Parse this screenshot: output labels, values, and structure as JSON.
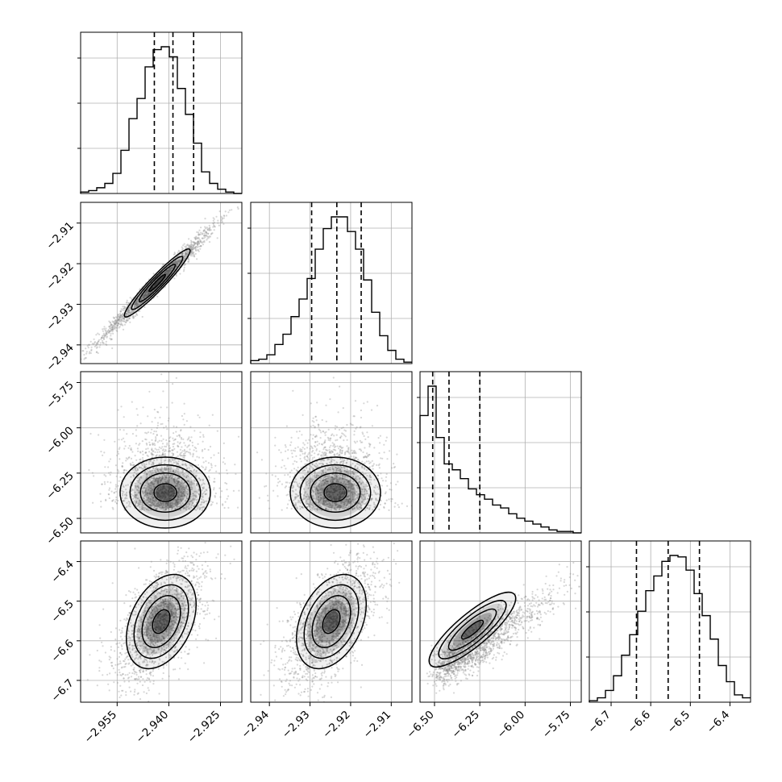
{
  "chart_data": {
    "type": "corner",
    "grid": true,
    "colors": {
      "axis": "#000000",
      "grid": "#b0b0b0",
      "scatter": "#8c8c8c",
      "hist": "#000000",
      "quantile": "#000000"
    },
    "parameters": [
      {
        "index": 0,
        "ticks": [
          -2.955,
          -2.94,
          -2.925
        ],
        "tick_labels": [
          "−2.955",
          "−2.940",
          "−2.925"
        ],
        "xlim": [
          -2.9656,
          -2.9188
        ],
        "quantiles": [
          -2.9442,
          -2.9388,
          -2.9328
        ]
      },
      {
        "index": 1,
        "ticks": [
          -2.94,
          -2.93,
          -2.92,
          -2.91
        ],
        "tick_labels": [
          "−2.94",
          "−2.93",
          "−2.92",
          "−2.91"
        ],
        "xlim": [
          -2.9446,
          -2.9049
        ],
        "quantiles": [
          -2.9296,
          -2.9234,
          -2.9174
        ]
      },
      {
        "index": 2,
        "ticks": [
          -6.5,
          -6.25,
          -6.0,
          -5.75
        ],
        "tick_labels": [
          "−6.50",
          "−6.25",
          "−6.00",
          "−5.75"
        ],
        "xlim": [
          -6.58,
          -5.69
        ],
        "quantiles": [
          -6.51,
          -6.42,
          -6.25
        ]
      },
      {
        "index": 3,
        "ticks": [
          -6.7,
          -6.6,
          -6.5,
          -6.4
        ],
        "tick_labels": [
          "−6.7",
          "−6.6",
          "−6.5",
          "−6.4"
        ],
        "xlim": [
          -6.755,
          -6.348
        ],
        "quantiles": [
          -6.636,
          -6.556,
          -6.477
        ]
      }
    ],
    "histograms": [
      {
        "param": 0,
        "counts": [
          1,
          2,
          4,
          7,
          14,
          30,
          52,
          66,
          88,
          100,
          102,
          95,
          73,
          55,
          35,
          15,
          7,
          3,
          1,
          0
        ]
      },
      {
        "param": 1,
        "counts": [
          2,
          3,
          6,
          13,
          20,
          32,
          44,
          58,
          78,
          92,
          100,
          100,
          90,
          78,
          57,
          35,
          19,
          9,
          3,
          1
        ]
      },
      {
        "param": 2,
        "counts": [
          80,
          100,
          65,
          47,
          43,
          37,
          30,
          26,
          23,
          19,
          17,
          13,
          10,
          8,
          6,
          4,
          2,
          1,
          1,
          0
        ]
      },
      {
        "param": 3,
        "counts": [
          1,
          3,
          8,
          18,
          32,
          46,
          62,
          76,
          86,
          96,
          100,
          99,
          90,
          74,
          59,
          43,
          25,
          14,
          5,
          3
        ]
      }
    ],
    "pairs": [
      {
        "x_param": 0,
        "y_param": 1,
        "correlation": 0.985
      },
      {
        "x_param": 0,
        "y_param": 2,
        "correlation": 0.05
      },
      {
        "x_param": 1,
        "y_param": 2,
        "correlation": 0.05
      },
      {
        "x_param": 0,
        "y_param": 3,
        "correlation": 0.6
      },
      {
        "x_param": 1,
        "y_param": 3,
        "correlation": 0.6
      },
      {
        "x_param": 2,
        "y_param": 3,
        "correlation": 0.8
      }
    ]
  }
}
